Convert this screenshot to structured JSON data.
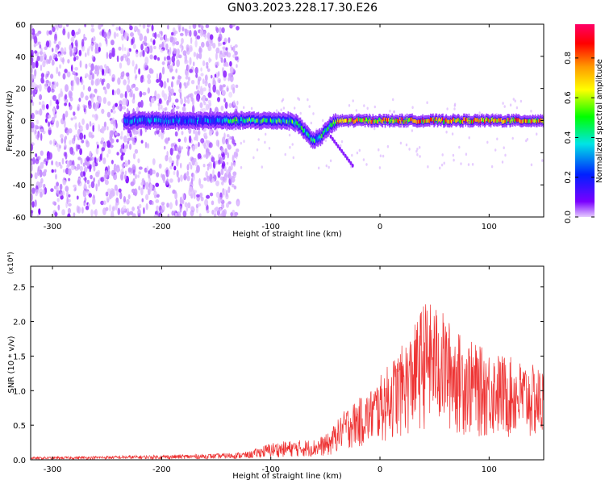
{
  "title": "GN03.2023.228.17.30.E26",
  "chart_data": [
    {
      "type": "heatmap",
      "xlabel": "Height of straight line (km)",
      "ylabel": "Frequency (Hz)",
      "xlim": [
        -320,
        150
      ],
      "ylim": [
        -60,
        60
      ],
      "xticks": [
        -300,
        -200,
        -100,
        0,
        100
      ],
      "yticks": [
        -60,
        -40,
        -20,
        0,
        20,
        40,
        60
      ],
      "colorbar": {
        "label": "Normalized spectral amplitude",
        "range": [
          0,
          0.97
        ],
        "ticks": [
          "0.0",
          "0.2",
          "0.4",
          "0.6",
          "0.8"
        ],
        "colormap": [
          "#e6ccff",
          "#7a00ff",
          "#0020ff",
          "#00e5e5",
          "#00ff00",
          "#ffff00",
          "#ff9900",
          "#ff0000",
          "#ff0066"
        ]
      },
      "features": {
        "noise_region_km": [
          -320,
          -140
        ],
        "signal_band_center_hz": 0,
        "signal_band_start_km": -235,
        "dip_center_km": -60,
        "dip_min_hz": -12,
        "tail_end_km": -25,
        "tail_end_hz": -28
      }
    },
    {
      "type": "line",
      "xlabel": "Height of straight line (km)",
      "ylabel": "SNR (10 * v/v)",
      "y_multiplier": "(x10⁴)",
      "xlim": [
        -320,
        150
      ],
      "ylim": [
        0,
        28000
      ],
      "xticks": [
        -300,
        -200,
        -100,
        0,
        100
      ],
      "yticks": [
        "0.0",
        "0.5",
        "1.0",
        "1.5",
        "2.0",
        "2.5"
      ],
      "series": [
        {
          "color": "#ee3333",
          "envelope": [
            {
              "x": -320,
              "y": 400
            },
            {
              "x": -200,
              "y": 700
            },
            {
              "x": -150,
              "y": 900
            },
            {
              "x": -120,
              "y": 1200
            },
            {
              "x": -100,
              "y": 2500
            },
            {
              "x": -80,
              "y": 2800
            },
            {
              "x": -60,
              "y": 3000
            },
            {
              "x": -45,
              "y": 4000
            },
            {
              "x": -30,
              "y": 7000
            },
            {
              "x": -10,
              "y": 9000
            },
            {
              "x": 10,
              "y": 13000
            },
            {
              "x": 30,
              "y": 17000
            },
            {
              "x": 40,
              "y": 21000
            },
            {
              "x": 55,
              "y": 20000
            },
            {
              "x": 70,
              "y": 17000
            },
            {
              "x": 90,
              "y": 15000
            },
            {
              "x": 110,
              "y": 14000
            },
            {
              "x": 130,
              "y": 13000
            },
            {
              "x": 150,
              "y": 12000
            }
          ]
        }
      ]
    }
  ]
}
